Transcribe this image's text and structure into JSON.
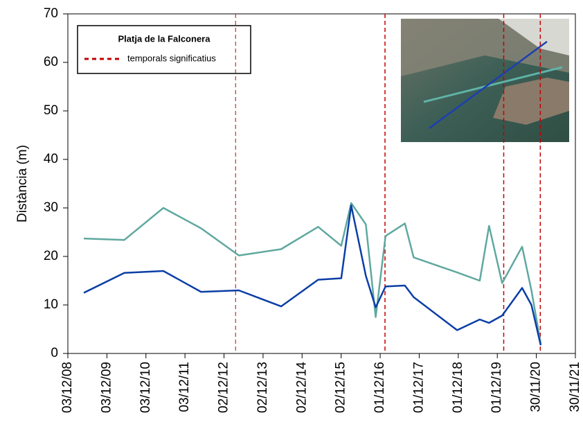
{
  "chart_data": {
    "type": "line",
    "y_label": "Distància (m)",
    "legend_title": "Platja de la Falconera",
    "x": [
      "2009-05-01",
      "2010-05-15",
      "2011-05-15",
      "2012-05-01",
      "2013-04-20",
      "2014-05-20",
      "2015-05-01",
      "2015-12-03",
      "2016-03-05",
      "2016-07-20",
      "2016-10-20",
      "2017-01-20",
      "2017-07-20",
      "2017-10-10",
      "2018-11-20",
      "2019-06-20",
      "2019-09-15",
      "2020-01-15",
      "2020-07-20",
      "2020-10-15",
      "2021-01-10"
    ],
    "series": [
      {
        "color": "#0a3ea6",
        "values": [
          12.5,
          16.6,
          17,
          12.7,
          13,
          9.7,
          15.2,
          15.5,
          30.5,
          16,
          9.5,
          13.8,
          14,
          11.6,
          4.8,
          7,
          6.3,
          7.8,
          13.5,
          10,
          1.7
        ]
      },
      {
        "color": "#5fa8a0",
        "values": [
          23.7,
          23.4,
          30,
          25.8,
          20.2,
          21.5,
          26.1,
          22.2,
          31,
          26.6,
          7.5,
          24.2,
          26.8,
          19.8,
          16.7,
          15,
          26.3,
          14.5,
          22,
          13,
          2
        ]
      }
    ],
    "storms": {
      "name": "temporals significatius",
      "color": "#c00000",
      "x": [
        "2013-03-20",
        "2017-01-15",
        "2020-01-30",
        "2021-01-06"
      ]
    },
    "xlim": [
      "2008-12-03",
      "2021-11-30"
    ],
    "xticks": [
      {
        "value": "2008-12-03",
        "label": "03/12/08"
      },
      {
        "value": "2009-12-03",
        "label": "03/12/09"
      },
      {
        "value": "2010-12-03",
        "label": "03/12/10"
      },
      {
        "value": "2011-12-03",
        "label": "03/12/11"
      },
      {
        "value": "2012-12-02",
        "label": "02/12/12"
      },
      {
        "value": "2013-12-02",
        "label": "02/12/13"
      },
      {
        "value": "2014-12-02",
        "label": "02/12/14"
      },
      {
        "value": "2015-12-02",
        "label": "02/12/15"
      },
      {
        "value": "2016-12-01",
        "label": "01/12/16"
      },
      {
        "value": "2017-12-01",
        "label": "01/12/17"
      },
      {
        "value": "2018-12-01",
        "label": "01/12/18"
      },
      {
        "value": "2019-12-01",
        "label": "01/12/19"
      },
      {
        "value": "2020-11-30",
        "label": "30/11/20"
      },
      {
        "value": "2021-11-30",
        "label": "30/11/21"
      }
    ],
    "ylim": [
      0,
      70
    ],
    "yticks": [
      0,
      10,
      20,
      30,
      40,
      50,
      60,
      70
    ]
  }
}
